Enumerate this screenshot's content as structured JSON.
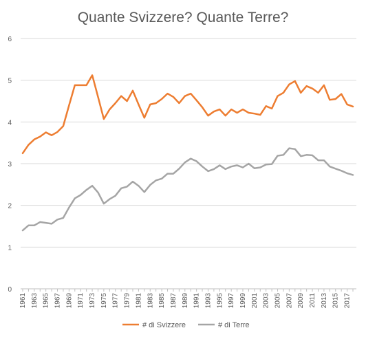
{
  "chart_data": {
    "type": "line",
    "title": "Quante Svizzere? Quante Terre?",
    "xlabel": "",
    "ylabel": "",
    "ylim": [
      0,
      6
    ],
    "yticks": [
      0,
      1,
      2,
      3,
      4,
      5,
      6
    ],
    "grid": true,
    "legend_position": "bottom",
    "x": [
      1961,
      1962,
      1963,
      1964,
      1965,
      1966,
      1967,
      1968,
      1969,
      1970,
      1971,
      1972,
      1973,
      1974,
      1975,
      1976,
      1977,
      1978,
      1979,
      1980,
      1981,
      1982,
      1983,
      1984,
      1985,
      1986,
      1987,
      1988,
      1989,
      1990,
      1991,
      1992,
      1993,
      1994,
      1995,
      1996,
      1997,
      1998,
      1999,
      2000,
      2001,
      2002,
      2003,
      2004,
      2005,
      2006,
      2007,
      2008,
      2009,
      2010,
      2011,
      2012,
      2013,
      2014,
      2015,
      2016,
      2017,
      2018
    ],
    "x_tick_labels": [
      "1961",
      "1963",
      "1965",
      "1967",
      "1969",
      "1971",
      "1973",
      "1975",
      "1977",
      "1979",
      "1981",
      "1983",
      "1985",
      "1987",
      "1989",
      "1991",
      "1993",
      "1995",
      "1997",
      "1999",
      "2001",
      "2003",
      "2005",
      "2007",
      "2009",
      "2011",
      "2013",
      "2015",
      "2017"
    ],
    "series": [
      {
        "name": "# di Svizzere",
        "color": "#ED7D31",
        "values": [
          3.25,
          3.45,
          3.58,
          3.65,
          3.75,
          3.68,
          3.76,
          3.9,
          4.4,
          4.88,
          4.88,
          4.88,
          5.12,
          4.6,
          4.07,
          4.3,
          4.45,
          4.62,
          4.5,
          4.75,
          4.42,
          4.1,
          4.42,
          4.45,
          4.55,
          4.68,
          4.6,
          4.45,
          4.62,
          4.68,
          4.52,
          4.35,
          4.15,
          4.25,
          4.3,
          4.15,
          4.3,
          4.22,
          4.3,
          4.22,
          4.2,
          4.17,
          4.38,
          4.32,
          4.62,
          4.7,
          4.9,
          4.98,
          4.7,
          4.86,
          4.8,
          4.7,
          4.88,
          4.53,
          4.55,
          4.67,
          4.42,
          4.37
        ]
      },
      {
        "name": "# di Terre",
        "color": "#A5A5A5",
        "values": [
          1.4,
          1.52,
          1.52,
          1.6,
          1.58,
          1.56,
          1.66,
          1.7,
          1.95,
          2.17,
          2.25,
          2.37,
          2.47,
          2.31,
          2.04,
          2.15,
          2.23,
          2.41,
          2.45,
          2.57,
          2.47,
          2.32,
          2.49,
          2.6,
          2.64,
          2.76,
          2.76,
          2.88,
          3.03,
          3.12,
          3.06,
          2.93,
          2.82,
          2.87,
          2.96,
          2.87,
          2.93,
          2.96,
          2.91,
          3.0,
          2.89,
          2.91,
          2.98,
          2.99,
          3.19,
          3.21,
          3.37,
          3.35,
          3.18,
          3.21,
          3.2,
          3.08,
          3.08,
          2.93,
          2.88,
          2.83,
          2.77,
          2.73
        ]
      }
    ]
  }
}
